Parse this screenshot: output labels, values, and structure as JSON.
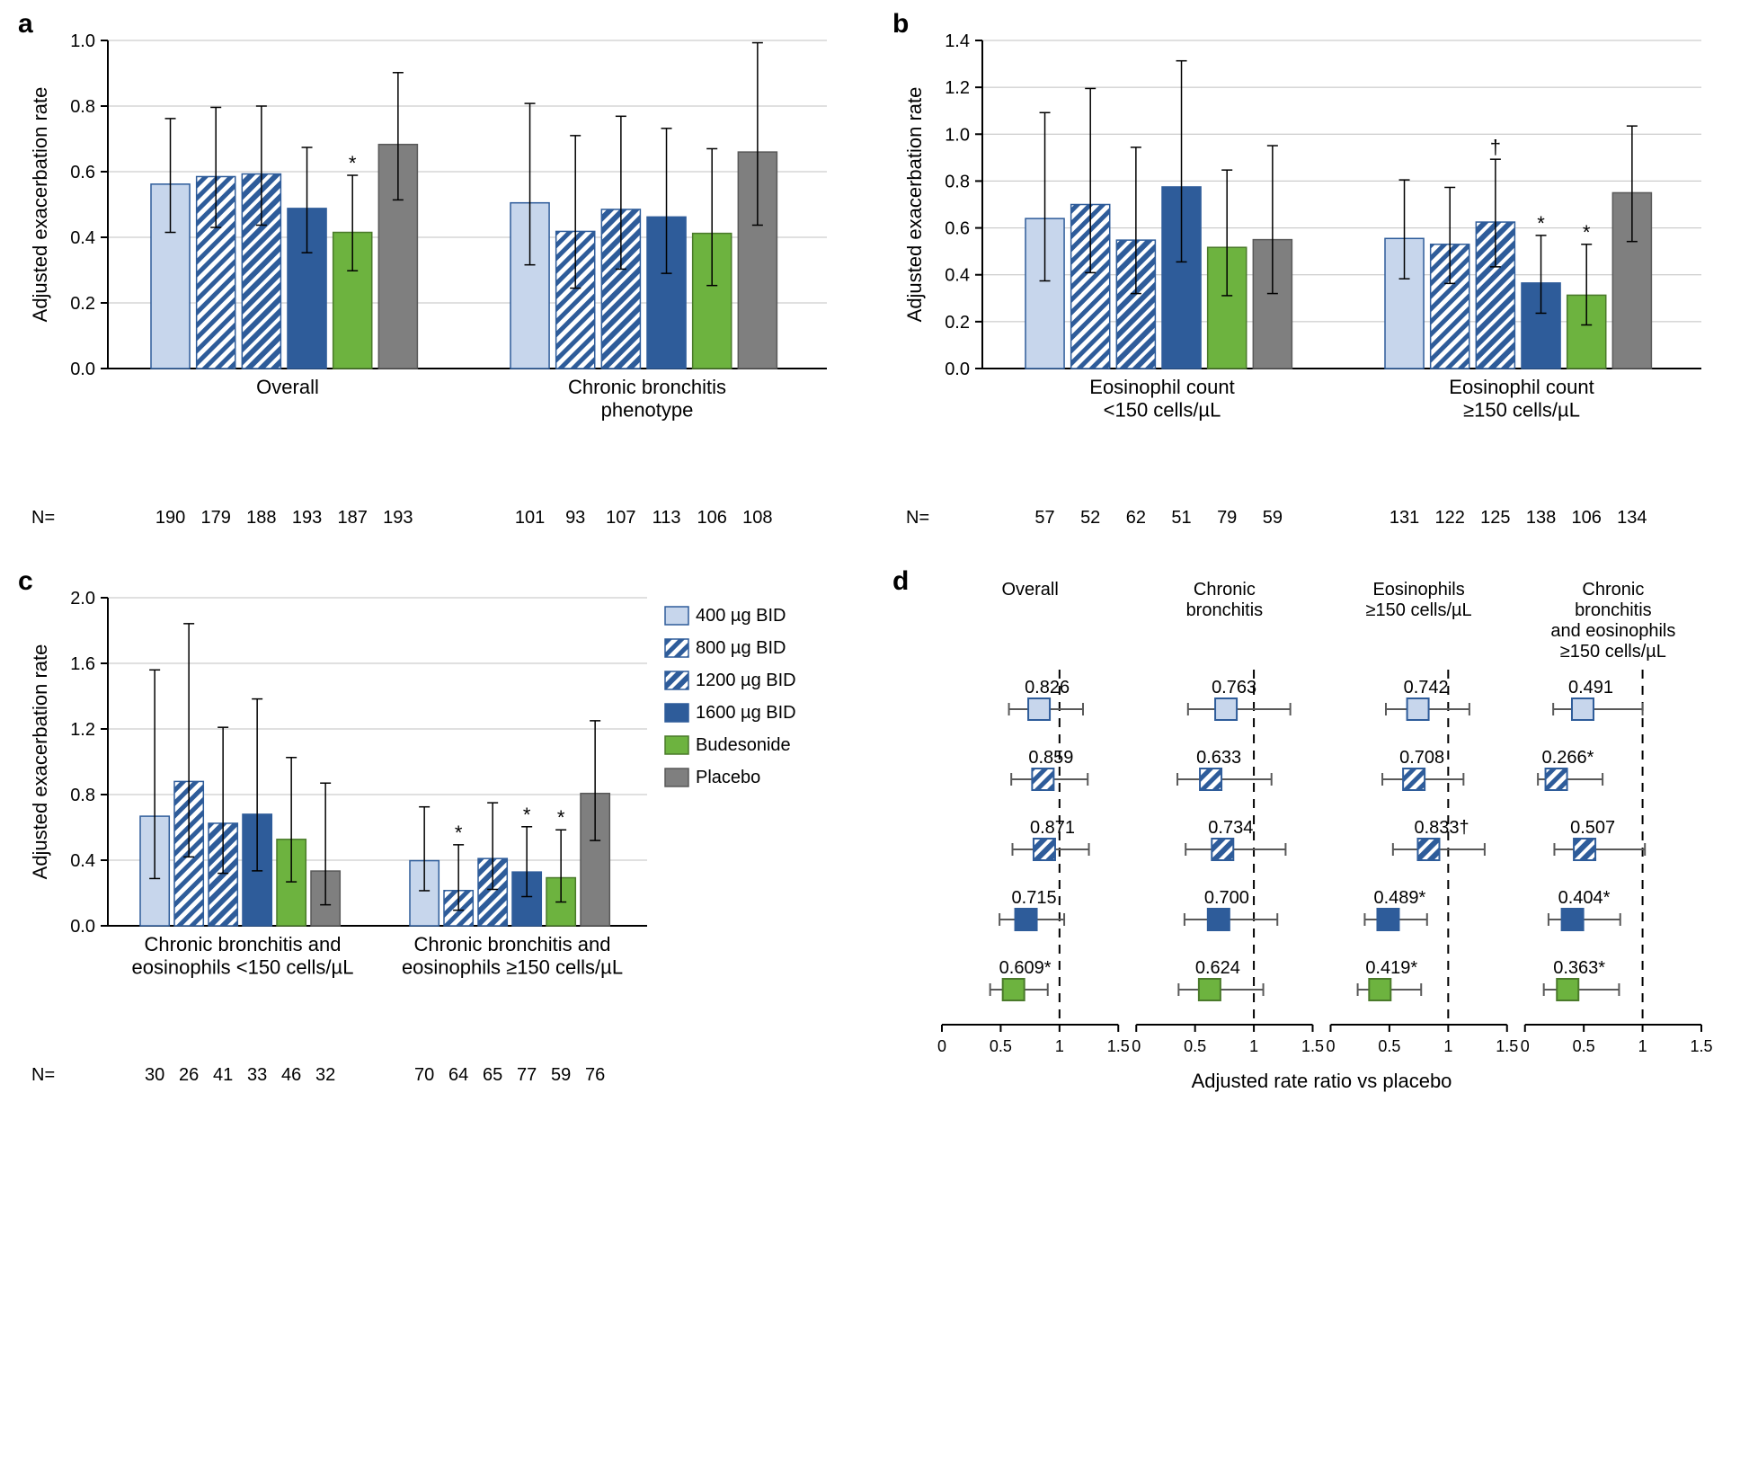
{
  "global": {
    "y_label": "Adjusted exacerbation rate",
    "x_label_d": "Adjusted rate ratio vs placebo",
    "n_label": "N=",
    "font_family": "Arial",
    "axis_fontsize": 22,
    "tick_fontsize": 20,
    "n_fontsize": 20,
    "label_fontsize": 22,
    "axis_color": "#000000",
    "grid_color": "#c0c0c0"
  },
  "legend": {
    "items": [
      {
        "key": "d400",
        "label": "400 µg BID",
        "color": "#c7d6ec",
        "hatch": "none",
        "border": "#2e5c9a"
      },
      {
        "key": "d800",
        "label": "800 µg BID",
        "color": "#ffffff",
        "hatch": "diag-blue",
        "border": "#2e5c9a"
      },
      {
        "key": "d1200",
        "label": "1200 µg BID",
        "color": "#2e5c9a",
        "hatch": "diag-white",
        "border": "#2e5c9a"
      },
      {
        "key": "d1600",
        "label": "1600 µg BID",
        "color": "#2e5c9a",
        "hatch": "none",
        "border": "#2e5c9a"
      },
      {
        "key": "bud",
        "label": "Budesonide",
        "color": "#6db33f",
        "hatch": "none",
        "border": "#4a7a2a"
      },
      {
        "key": "plc",
        "label": "Placebo",
        "color": "#7f7f7f",
        "hatch": "none",
        "border": "#595959"
      }
    ]
  },
  "panel_a": {
    "label": "a",
    "type": "bar",
    "ylim": [
      0,
      1.0
    ],
    "ytick_step": 0.2,
    "groups": [
      {
        "name": "Overall",
        "values": [
          0.562,
          0.585,
          0.593,
          0.488,
          0.415,
          0.683
        ],
        "err_lo": [
          0.415,
          0.43,
          0.437,
          0.353,
          0.298,
          0.514
        ],
        "err_hi": [
          0.762,
          0.796,
          0.8,
          0.674,
          0.589,
          0.902
        ],
        "marks": [
          "",
          "",
          "",
          "",
          "*",
          ""
        ],
        "n": [
          190,
          179,
          188,
          193,
          187,
          193
        ]
      },
      {
        "name": "Chronic bronchitis\nphenotype",
        "values": [
          0.505,
          0.418,
          0.485,
          0.462,
          0.412,
          0.66
        ],
        "err_lo": [
          0.316,
          0.245,
          0.303,
          0.29,
          0.253,
          0.437
        ],
        "err_hi": [
          0.808,
          0.71,
          0.769,
          0.732,
          0.67,
          0.993
        ],
        "marks": [
          "",
          "",
          "",
          "",
          "",
          ""
        ],
        "n": [
          101,
          93,
          107,
          113,
          106,
          108
        ]
      }
    ]
  },
  "panel_b": {
    "label": "b",
    "type": "bar",
    "ylim": [
      0,
      1.4
    ],
    "ytick_step": 0.2,
    "groups": [
      {
        "name": "Eosinophil count\n<150 cells/µL",
        "values": [
          0.64,
          0.7,
          0.548,
          0.775,
          0.517,
          0.55
        ],
        "err_lo": [
          0.374,
          0.409,
          0.32,
          0.455,
          0.311,
          0.32
        ],
        "err_hi": [
          1.092,
          1.195,
          0.944,
          1.313,
          0.847,
          0.951
        ],
        "marks": [
          "",
          "",
          "",
          "",
          "",
          ""
        ],
        "n": [
          57,
          52,
          62,
          51,
          79,
          59
        ]
      },
      {
        "name": "Eosinophil count\n≥150 cells/µL",
        "values": [
          0.555,
          0.53,
          0.625,
          0.365,
          0.313,
          0.75
        ],
        "err_lo": [
          0.383,
          0.363,
          0.434,
          0.236,
          0.186,
          0.542
        ],
        "err_hi": [
          0.805,
          0.773,
          0.893,
          0.568,
          0.53,
          1.035
        ],
        "marks": [
          "",
          "",
          "†",
          "*",
          "*",
          ""
        ],
        "n": [
          131,
          122,
          125,
          138,
          106,
          134
        ]
      }
    ]
  },
  "panel_c": {
    "label": "c",
    "type": "bar",
    "ylim": [
      0,
      2.0
    ],
    "ytick_step": 0.4,
    "groups": [
      {
        "name": "Chronic bronchitis and\neosinophils <150 cells/µL",
        "values": [
          0.668,
          0.88,
          0.625,
          0.68,
          0.527,
          0.334
        ],
        "err_lo": [
          0.288,
          0.42,
          0.32,
          0.335,
          0.268,
          0.128
        ],
        "err_hi": [
          1.56,
          1.842,
          1.21,
          1.383,
          1.026,
          0.87
        ],
        "marks": [
          "",
          "",
          "",
          "",
          "",
          ""
        ],
        "n": [
          30,
          26,
          41,
          33,
          46,
          32
        ]
      },
      {
        "name": "Chronic bronchitis and\neosinophils ≥150 cells/µL",
        "values": [
          0.397,
          0.215,
          0.41,
          0.328,
          0.293,
          0.807
        ],
        "err_lo": [
          0.214,
          0.095,
          0.222,
          0.178,
          0.145,
          0.52
        ],
        "err_hi": [
          0.725,
          0.494,
          0.75,
          0.604,
          0.585,
          1.25
        ],
        "marks": [
          "",
          "*",
          "",
          "*",
          "*",
          ""
        ],
        "n": [
          70,
          64,
          65,
          77,
          59,
          76
        ]
      }
    ]
  },
  "panel_d": {
    "label": "d",
    "type": "forest",
    "xlim": [
      0,
      1.5
    ],
    "xtick_step": 0.5,
    "ref": 1.0,
    "columns": [
      {
        "title": "Overall",
        "rows": [
          {
            "series": "d400",
            "value": 0.826,
            "lo": 0.57,
            "hi": 1.2,
            "text": "0.826",
            "mark": ""
          },
          {
            "series": "d800",
            "value": 0.859,
            "lo": 0.59,
            "hi": 1.24,
            "text": "0.859",
            "mark": ""
          },
          {
            "series": "d1200",
            "value": 0.871,
            "lo": 0.6,
            "hi": 1.25,
            "text": "0.871",
            "mark": ""
          },
          {
            "series": "d1600",
            "value": 0.715,
            "lo": 0.49,
            "hi": 1.04,
            "text": "0.715",
            "mark": ""
          },
          {
            "series": "bud",
            "value": 0.609,
            "lo": 0.41,
            "hi": 0.9,
            "text": "0.609",
            "mark": "*"
          }
        ]
      },
      {
        "title": "Chronic\nbronchitis",
        "rows": [
          {
            "series": "d400",
            "value": 0.763,
            "lo": 0.44,
            "hi": 1.31,
            "text": "0.763",
            "mark": ""
          },
          {
            "series": "d800",
            "value": 0.633,
            "lo": 0.35,
            "hi": 1.15,
            "text": "0.633",
            "mark": ""
          },
          {
            "series": "d1200",
            "value": 0.734,
            "lo": 0.42,
            "hi": 1.27,
            "text": "0.734",
            "mark": ""
          },
          {
            "series": "d1600",
            "value": 0.7,
            "lo": 0.41,
            "hi": 1.2,
            "text": "0.700",
            "mark": ""
          },
          {
            "series": "bud",
            "value": 0.624,
            "lo": 0.36,
            "hi": 1.08,
            "text": "0.624",
            "mark": ""
          }
        ]
      },
      {
        "title": "Eosinophils\n≥150 cells/µL",
        "rows": [
          {
            "series": "d400",
            "value": 0.742,
            "lo": 0.47,
            "hi": 1.18,
            "text": "0.742",
            "mark": ""
          },
          {
            "series": "d800",
            "value": 0.708,
            "lo": 0.44,
            "hi": 1.13,
            "text": "0.708",
            "mark": ""
          },
          {
            "series": "d1200",
            "value": 0.833,
            "lo": 0.53,
            "hi": 1.31,
            "text": "0.833",
            "mark": "†"
          },
          {
            "series": "d1600",
            "value": 0.489,
            "lo": 0.29,
            "hi": 0.82,
            "text": "0.489",
            "mark": "*"
          },
          {
            "series": "bud",
            "value": 0.419,
            "lo": 0.23,
            "hi": 0.77,
            "text": "0.419",
            "mark": "*"
          }
        ]
      },
      {
        "title": "Chronic\nbronchitis\nand eosinophils\n≥150 cells/µL",
        "rows": [
          {
            "series": "d400",
            "value": 0.491,
            "lo": 0.24,
            "hi": 1.0,
            "text": "0.491",
            "mark": ""
          },
          {
            "series": "d800",
            "value": 0.266,
            "lo": 0.11,
            "hi": 0.66,
            "text": "0.266",
            "mark": "*"
          },
          {
            "series": "d1200",
            "value": 0.507,
            "lo": 0.25,
            "hi": 1.02,
            "text": "0.507",
            "mark": ""
          },
          {
            "series": "d1600",
            "value": 0.404,
            "lo": 0.2,
            "hi": 0.81,
            "text": "0.404",
            "mark": "*"
          },
          {
            "series": "bud",
            "value": 0.363,
            "lo": 0.16,
            "hi": 0.8,
            "text": "0.363",
            "mark": "*"
          }
        ]
      }
    ]
  }
}
